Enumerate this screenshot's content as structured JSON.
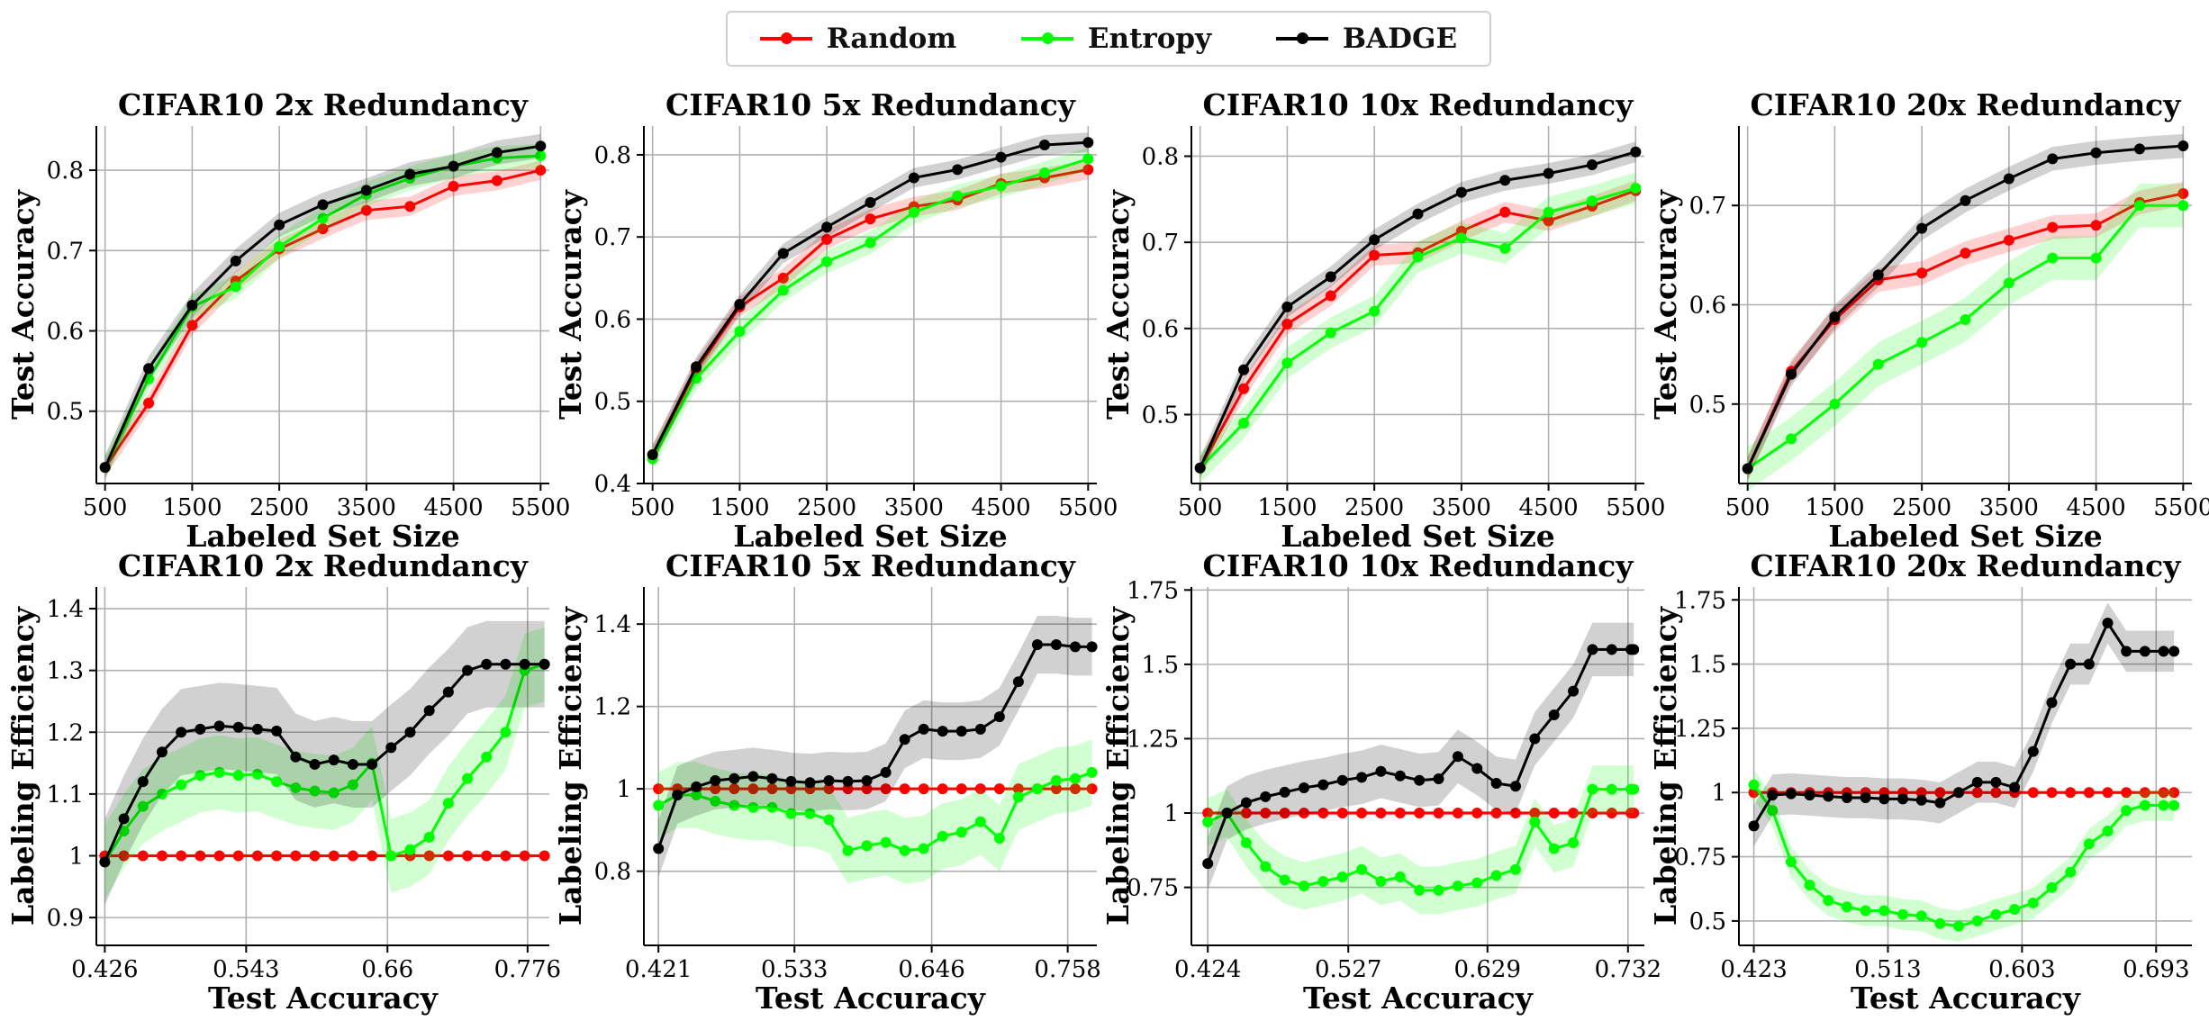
{
  "legend": [
    {
      "name": "Random",
      "color": "#ff0000"
    },
    {
      "name": "Entropy",
      "color": "#00ff00"
    },
    {
      "name": "BADGE",
      "color": "#000000"
    }
  ],
  "colors": {
    "Random": "#ff0000",
    "Entropy": "#00ff00",
    "BADGE": "#000000"
  },
  "chart_data": [
    {
      "type": "line",
      "title": "CIFAR10 2x Redundancy",
      "xlabel": "Labeled Set Size",
      "ylabel": "Test Accuracy",
      "xlim": [
        400,
        5600
      ],
      "ylim": [
        0.41,
        0.855
      ],
      "xticks": [
        500,
        1500,
        2500,
        3500,
        4500,
        5500
      ],
      "yticks": [
        0.5,
        0.6,
        0.7,
        0.8
      ],
      "grid": true,
      "x": [
        500,
        1000,
        1500,
        2000,
        2500,
        3000,
        3500,
        4000,
        4500,
        5000,
        5500
      ],
      "series": [
        {
          "name": "Random",
          "values": [
            0.43,
            0.51,
            0.607,
            0.662,
            0.702,
            0.727,
            0.75,
            0.755,
            0.78,
            0.787,
            0.8
          ],
          "band": 0.012
        },
        {
          "name": "Entropy",
          "values": [
            0.43,
            0.54,
            0.63,
            0.655,
            0.705,
            0.74,
            0.77,
            0.79,
            0.805,
            0.815,
            0.818
          ],
          "band": 0.015
        },
        {
          "name": "BADGE",
          "values": [
            0.43,
            0.553,
            0.632,
            0.687,
            0.732,
            0.757,
            0.775,
            0.795,
            0.805,
            0.822,
            0.83
          ],
          "band": 0.015
        }
      ]
    },
    {
      "type": "line",
      "title": "CIFAR10 5x Redundancy",
      "xlabel": "Labeled Set Size",
      "ylabel": "Test Accuracy",
      "xlim": [
        400,
        5600
      ],
      "ylim": [
        0.4,
        0.835
      ],
      "xticks": [
        500,
        1500,
        2500,
        3500,
        4500,
        5500
      ],
      "yticks": [
        0.4,
        0.5,
        0.6,
        0.7,
        0.8
      ],
      "grid": true,
      "x": [
        500,
        1000,
        1500,
        2000,
        2500,
        3000,
        3500,
        4000,
        4500,
        5000,
        5500
      ],
      "series": [
        {
          "name": "Random",
          "values": [
            0.435,
            0.538,
            0.615,
            0.65,
            0.697,
            0.722,
            0.737,
            0.745,
            0.765,
            0.772,
            0.782
          ],
          "band": 0.012
        },
        {
          "name": "Entropy",
          "values": [
            0.43,
            0.528,
            0.585,
            0.635,
            0.67,
            0.693,
            0.73,
            0.75,
            0.762,
            0.778,
            0.795
          ],
          "band": 0.014
        },
        {
          "name": "BADGE",
          "values": [
            0.435,
            0.542,
            0.618,
            0.68,
            0.712,
            0.742,
            0.772,
            0.782,
            0.797,
            0.812,
            0.815
          ],
          "band": 0.012
        }
      ]
    },
    {
      "type": "line",
      "title": "CIFAR10 10x Redundancy",
      "xlabel": "Labeled Set Size",
      "ylabel": "Test Accuracy",
      "xlim": [
        400,
        5600
      ],
      "ylim": [
        0.42,
        0.835
      ],
      "xticks": [
        500,
        1500,
        2500,
        3500,
        4500,
        5500
      ],
      "yticks": [
        0.5,
        0.6,
        0.7,
        0.8
      ],
      "grid": true,
      "x": [
        500,
        1000,
        1500,
        2000,
        2500,
        3000,
        3500,
        4000,
        4500,
        5000,
        5500
      ],
      "series": [
        {
          "name": "Random",
          "values": [
            0.438,
            0.53,
            0.605,
            0.638,
            0.685,
            0.688,
            0.713,
            0.735,
            0.725,
            0.742,
            0.76
          ],
          "band": 0.012
        },
        {
          "name": "Entropy",
          "values": [
            0.438,
            0.49,
            0.56,
            0.595,
            0.62,
            0.683,
            0.705,
            0.693,
            0.735,
            0.748,
            0.763
          ],
          "band": 0.018
        },
        {
          "name": "BADGE",
          "values": [
            0.438,
            0.552,
            0.625,
            0.66,
            0.703,
            0.733,
            0.758,
            0.772,
            0.78,
            0.79,
            0.805
          ],
          "band": 0.012
        }
      ]
    },
    {
      "type": "line",
      "title": "CIFAR10 20x Redundancy",
      "xlabel": "Labeled Set Size",
      "ylabel": "Test Accuracy",
      "xlim": [
        400,
        5600
      ],
      "ylim": [
        0.42,
        0.78
      ],
      "xticks": [
        500,
        1500,
        2500,
        3500,
        4500,
        5500
      ],
      "yticks": [
        0.5,
        0.6,
        0.7
      ],
      "grid": true,
      "x": [
        500,
        1000,
        1500,
        2000,
        2500,
        3000,
        3500,
        4000,
        4500,
        5000,
        5500
      ],
      "series": [
        {
          "name": "Random",
          "values": [
            0.435,
            0.533,
            0.585,
            0.625,
            0.632,
            0.652,
            0.665,
            0.678,
            0.68,
            0.703,
            0.712
          ],
          "band": 0.012
        },
        {
          "name": "Entropy",
          "values": [
            0.435,
            0.465,
            0.5,
            0.54,
            0.562,
            0.585,
            0.622,
            0.647,
            0.647,
            0.7,
            0.7
          ],
          "band": 0.022
        },
        {
          "name": "BADGE",
          "values": [
            0.435,
            0.53,
            0.588,
            0.63,
            0.677,
            0.705,
            0.727,
            0.747,
            0.753,
            0.757,
            0.76
          ],
          "band": 0.012
        }
      ]
    },
    {
      "type": "line",
      "title": "CIFAR10 2x Redundancy",
      "xlabel": "Test Accuracy",
      "ylabel": "Labeling Efficiency",
      "xlim": [
        0.419,
        0.794
      ],
      "ylim": [
        0.855,
        1.435
      ],
      "xticks": [
        0.426,
        0.543,
        0.66,
        0.776
      ],
      "xtick_labels": [
        "0.426",
        "0.543",
        "0.66",
        "0.776"
      ],
      "yticks": [
        0.9,
        1.0,
        1.1,
        1.2,
        1.3,
        1.4
      ],
      "grid": true,
      "x": [
        0.426,
        0.4418,
        0.4576,
        0.4734,
        0.4892,
        0.505,
        0.5208,
        0.5366,
        0.5524,
        0.5682,
        0.584,
        0.5998,
        0.6156,
        0.6314,
        0.6472,
        0.663,
        0.6788,
        0.6946,
        0.7104,
        0.7262,
        0.742,
        0.7578,
        0.7736,
        0.79
      ],
      "series": [
        {
          "name": "Random",
          "values": [
            1.0,
            1.0,
            1.0,
            1.0,
            1.0,
            1.0,
            1.0,
            1.0,
            1.0,
            1.0,
            1.0,
            1.0,
            1.0,
            1.0,
            1.0,
            1.0,
            1.0,
            1.0,
            1.0,
            1.0,
            1.0,
            1.0,
            1.0,
            1.0
          ],
          "band": 0.003
        },
        {
          "name": "Entropy",
          "values": [
            0.99,
            1.04,
            1.08,
            1.1,
            1.115,
            1.13,
            1.135,
            1.13,
            1.132,
            1.12,
            1.11,
            1.105,
            1.102,
            1.115,
            1.15,
            1.0,
            1.01,
            1.03,
            1.085,
            1.125,
            1.16,
            1.2,
            1.3,
            1.31
          ],
          "band": 0.06
        },
        {
          "name": "BADGE",
          "values": [
            0.99,
            1.06,
            1.12,
            1.168,
            1.2,
            1.205,
            1.21,
            1.208,
            1.205,
            1.202,
            1.16,
            1.148,
            1.155,
            1.148,
            1.148,
            1.175,
            1.2,
            1.235,
            1.265,
            1.3,
            1.31,
            1.31,
            1.31,
            1.31
          ],
          "band": 0.07
        }
      ]
    },
    {
      "type": "line",
      "title": "CIFAR10 5x Redundancy",
      "xlabel": "Test Accuracy",
      "ylabel": "Labeling Efficiency",
      "xlim": [
        0.409,
        0.782
      ],
      "ylim": [
        0.62,
        1.49
      ],
      "xticks": [
        0.421,
        0.533,
        0.646,
        0.758
      ],
      "xtick_labels": [
        "0.421",
        "0.533",
        "0.646",
        "0.758"
      ],
      "yticks": [
        0.8,
        1.0,
        1.2,
        1.4
      ],
      "grid": true,
      "x": [
        0.421,
        0.4366,
        0.4522,
        0.4678,
        0.4834,
        0.499,
        0.5146,
        0.5302,
        0.5458,
        0.5614,
        0.577,
        0.5926,
        0.6082,
        0.6238,
        0.6394,
        0.655,
        0.6706,
        0.6862,
        0.7018,
        0.7174,
        0.733,
        0.7486,
        0.7642,
        0.778
      ],
      "series": [
        {
          "name": "Random",
          "values": [
            1.0,
            1.0,
            1.0,
            1.0,
            1.0,
            1.0,
            1.0,
            1.0,
            1.0,
            1.0,
            1.0,
            1.0,
            1.0,
            1.0,
            1.0,
            1.0,
            1.0,
            1.0,
            1.0,
            1.0,
            1.0,
            1.0,
            1.0,
            1.0
          ],
          "band": 0.004
        },
        {
          "name": "Entropy",
          "values": [
            0.96,
            0.985,
            0.985,
            0.97,
            0.96,
            0.955,
            0.955,
            0.94,
            0.94,
            0.925,
            0.85,
            0.862,
            0.87,
            0.85,
            0.855,
            0.885,
            0.895,
            0.92,
            0.88,
            0.98,
            1.0,
            1.02,
            1.025,
            1.04
          ],
          "band": 0.08
        },
        {
          "name": "BADGE",
          "values": [
            0.855,
            0.985,
            1.005,
            1.02,
            1.025,
            1.03,
            1.025,
            1.018,
            1.015,
            1.02,
            1.018,
            1.02,
            1.04,
            1.12,
            1.145,
            1.14,
            1.14,
            1.145,
            1.175,
            1.26,
            1.35,
            1.35,
            1.345,
            1.345
          ],
          "band": 0.07
        }
      ]
    },
    {
      "type": "line",
      "title": "CIFAR10 10x Redundancy",
      "xlabel": "Test Accuracy",
      "ylabel": "Labeling Efficiency",
      "xlim": [
        0.412,
        0.744
      ],
      "ylim": [
        0.555,
        1.76
      ],
      "xticks": [
        0.424,
        0.527,
        0.629,
        0.732
      ],
      "xtick_labels": [
        "0.424",
        "0.527",
        "0.629",
        "0.732"
      ],
      "yticks": [
        0.75,
        1.0,
        1.25,
        1.5,
        1.75
      ],
      "grid": true,
      "x": [
        0.424,
        0.4381,
        0.4522,
        0.4663,
        0.4804,
        0.4945,
        0.5086,
        0.5227,
        0.5368,
        0.5509,
        0.565,
        0.5791,
        0.5932,
        0.6073,
        0.6214,
        0.6355,
        0.6496,
        0.6637,
        0.6778,
        0.6919,
        0.706,
        0.7201,
        0.7342,
        0.7362
      ],
      "series": [
        {
          "name": "Random",
          "values": [
            1.0,
            1.0,
            1.0,
            1.0,
            1.0,
            1.0,
            1.0,
            1.0,
            1.0,
            1.0,
            1.0,
            1.0,
            1.0,
            1.0,
            1.0,
            1.0,
            1.0,
            1.0,
            1.0,
            1.0,
            1.0,
            1.0,
            1.0,
            1.0
          ],
          "band": 0.006
        },
        {
          "name": "Entropy",
          "values": [
            0.97,
            1.0,
            0.9,
            0.82,
            0.775,
            0.755,
            0.77,
            0.785,
            0.81,
            0.77,
            0.785,
            0.74,
            0.74,
            0.755,
            0.765,
            0.79,
            0.81,
            0.97,
            0.88,
            0.9,
            1.08,
            1.08,
            1.08,
            1.08
          ],
          "band": 0.08
        },
        {
          "name": "BADGE",
          "values": [
            0.83,
            1.0,
            1.035,
            1.055,
            1.07,
            1.085,
            1.095,
            1.11,
            1.12,
            1.14,
            1.125,
            1.11,
            1.115,
            1.19,
            1.15,
            1.1,
            1.09,
            1.25,
            1.33,
            1.41,
            1.55,
            1.55,
            1.55,
            1.55
          ],
          "band": 0.09
        }
      ]
    },
    {
      "type": "line",
      "title": "CIFAR10 20x Redundancy",
      "xlabel": "Test Accuracy",
      "ylabel": "Labeling Efficiency",
      "xlim": [
        0.413,
        0.717
      ],
      "ylim": [
        0.405,
        1.8
      ],
      "xticks": [
        0.423,
        0.513,
        0.603,
        0.693
      ],
      "xtick_labels": [
        "0.423",
        "0.513",
        "0.603",
        "0.693"
      ],
      "yticks": [
        0.5,
        0.75,
        1.0,
        1.25,
        1.5,
        1.75
      ],
      "grid": true,
      "x": [
        0.423,
        0.4355,
        0.448,
        0.4605,
        0.473,
        0.4855,
        0.498,
        0.5105,
        0.523,
        0.5355,
        0.548,
        0.5605,
        0.573,
        0.5855,
        0.598,
        0.6105,
        0.623,
        0.6355,
        0.648,
        0.6605,
        0.673,
        0.6855,
        0.698,
        0.705
      ],
      "series": [
        {
          "name": "Random",
          "values": [
            1.0,
            1.0,
            1.0,
            1.0,
            1.0,
            1.0,
            1.0,
            1.0,
            1.0,
            1.0,
            1.0,
            1.0,
            1.0,
            1.0,
            1.0,
            1.0,
            1.0,
            1.0,
            1.0,
            1.0,
            1.0,
            1.0,
            1.0,
            1.0
          ],
          "band": 0.006
        },
        {
          "name": "Entropy",
          "values": [
            1.03,
            0.93,
            0.73,
            0.64,
            0.58,
            0.555,
            0.54,
            0.54,
            0.525,
            0.52,
            0.49,
            0.48,
            0.5,
            0.525,
            0.545,
            0.57,
            0.63,
            0.69,
            0.8,
            0.85,
            0.93,
            0.95,
            0.95,
            0.95
          ],
          "band": 0.06
        },
        {
          "name": "BADGE",
          "values": [
            0.87,
            0.99,
            0.995,
            0.99,
            0.985,
            0.98,
            0.98,
            0.975,
            0.975,
            0.97,
            0.96,
            1.0,
            1.04,
            1.04,
            1.02,
            1.16,
            1.35,
            1.5,
            1.5,
            1.66,
            1.55,
            1.55,
            1.55,
            1.55
          ],
          "band": 0.08
        }
      ]
    }
  ]
}
